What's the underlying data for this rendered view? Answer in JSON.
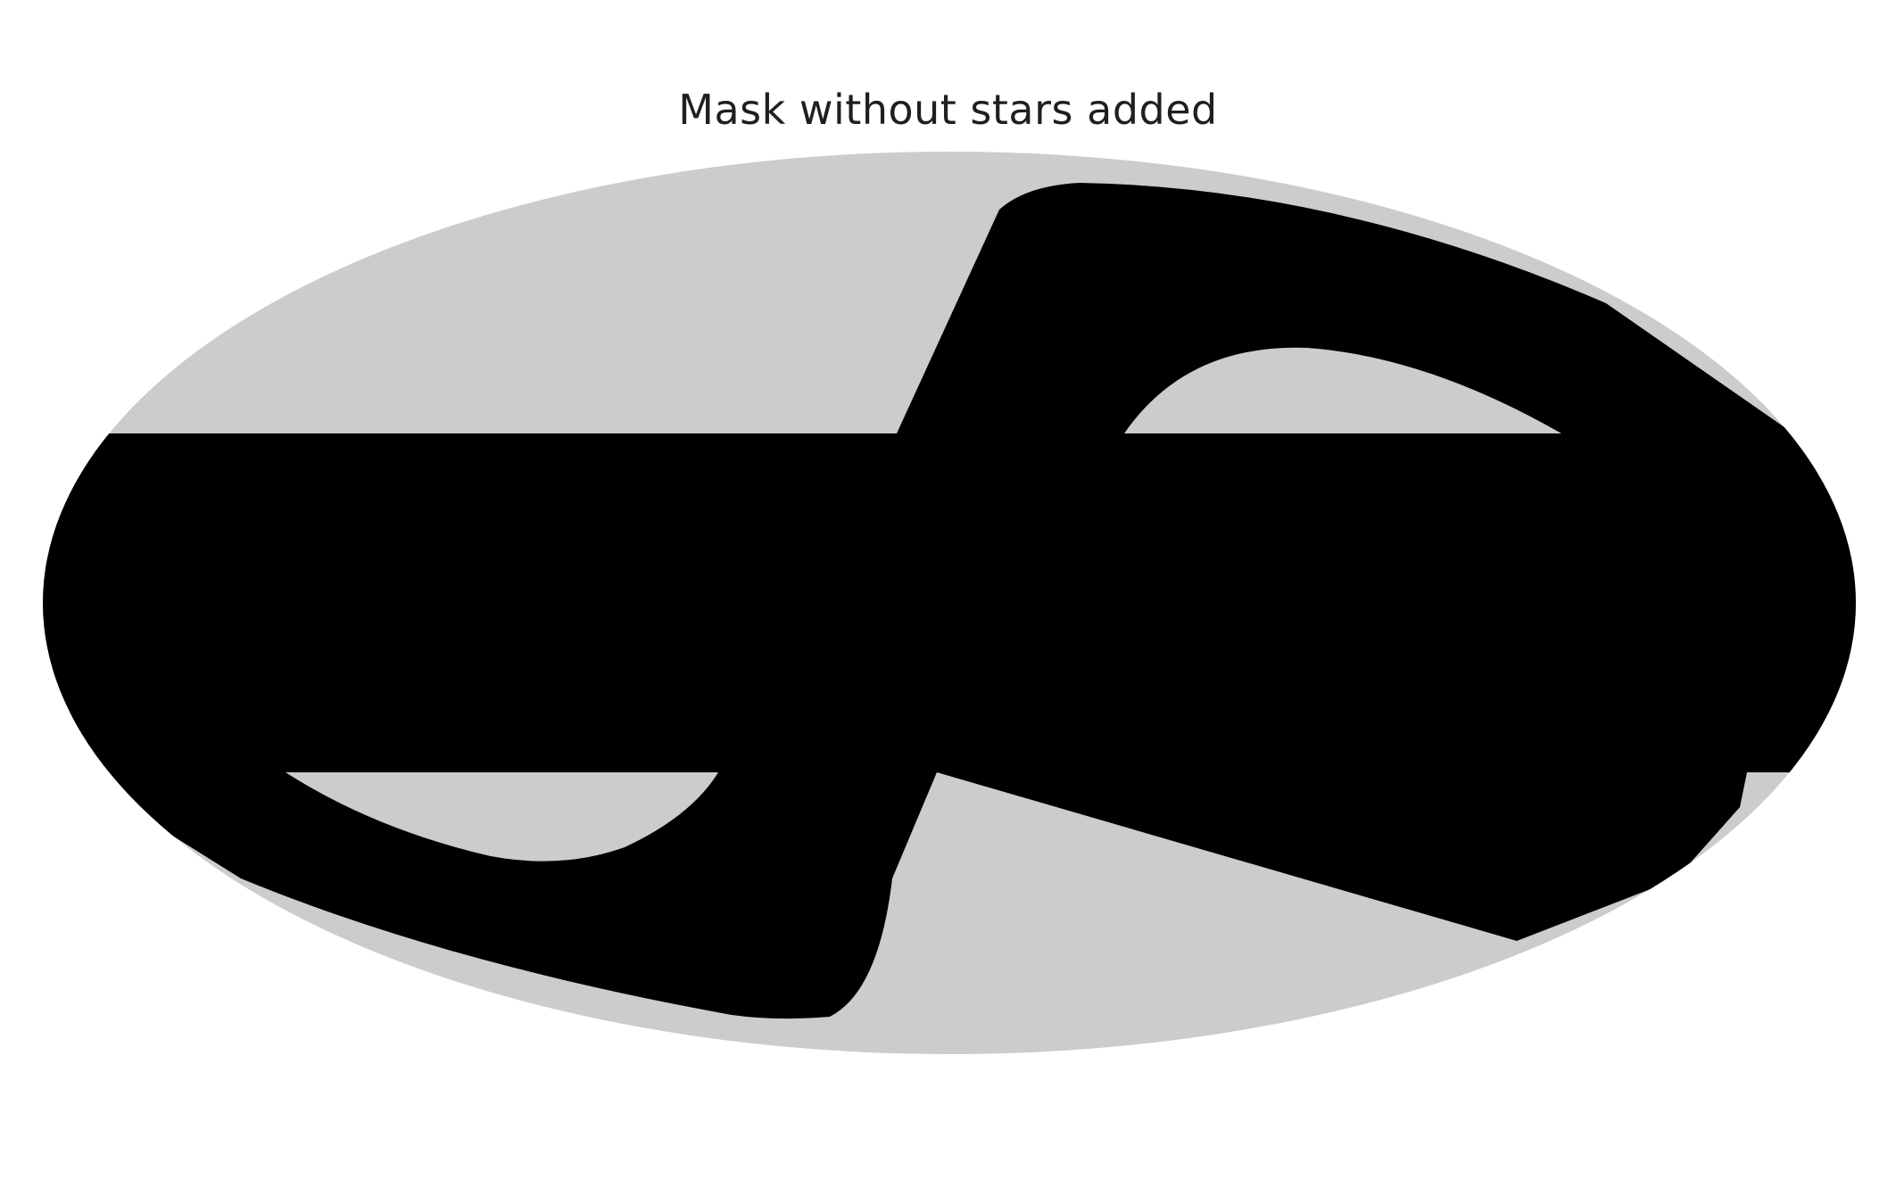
{
  "figure": {
    "title": "Mask without stars added"
  },
  "map": {
    "projection": "mollweide",
    "colors": {
      "unmasked": "#cccccc",
      "masked": "#000000",
      "background": "#ffffff"
    }
  }
}
